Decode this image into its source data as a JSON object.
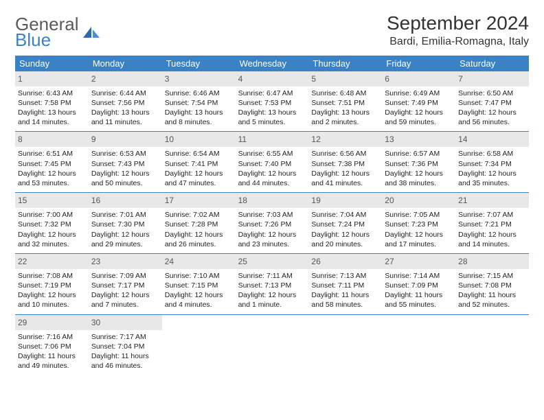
{
  "brand": {
    "word1": "General",
    "word2": "Blue"
  },
  "title": "September 2024",
  "location": "Bardi, Emilia-Romagna, Italy",
  "colors": {
    "accent": "#3b82c4",
    "daybar": "#e8e8e8",
    "text": "#222222",
    "muted": "#555555",
    "bg": "#ffffff"
  },
  "weekdays": [
    "Sunday",
    "Monday",
    "Tuesday",
    "Wednesday",
    "Thursday",
    "Friday",
    "Saturday"
  ],
  "weeks": [
    [
      {
        "n": "1",
        "sr": "Sunrise: 6:43 AM",
        "ss": "Sunset: 7:58 PM",
        "d1": "Daylight: 13 hours",
        "d2": "and 14 minutes."
      },
      {
        "n": "2",
        "sr": "Sunrise: 6:44 AM",
        "ss": "Sunset: 7:56 PM",
        "d1": "Daylight: 13 hours",
        "d2": "and 11 minutes."
      },
      {
        "n": "3",
        "sr": "Sunrise: 6:46 AM",
        "ss": "Sunset: 7:54 PM",
        "d1": "Daylight: 13 hours",
        "d2": "and 8 minutes."
      },
      {
        "n": "4",
        "sr": "Sunrise: 6:47 AM",
        "ss": "Sunset: 7:53 PM",
        "d1": "Daylight: 13 hours",
        "d2": "and 5 minutes."
      },
      {
        "n": "5",
        "sr": "Sunrise: 6:48 AM",
        "ss": "Sunset: 7:51 PM",
        "d1": "Daylight: 13 hours",
        "d2": "and 2 minutes."
      },
      {
        "n": "6",
        "sr": "Sunrise: 6:49 AM",
        "ss": "Sunset: 7:49 PM",
        "d1": "Daylight: 12 hours",
        "d2": "and 59 minutes."
      },
      {
        "n": "7",
        "sr": "Sunrise: 6:50 AM",
        "ss": "Sunset: 7:47 PM",
        "d1": "Daylight: 12 hours",
        "d2": "and 56 minutes."
      }
    ],
    [
      {
        "n": "8",
        "sr": "Sunrise: 6:51 AM",
        "ss": "Sunset: 7:45 PM",
        "d1": "Daylight: 12 hours",
        "d2": "and 53 minutes."
      },
      {
        "n": "9",
        "sr": "Sunrise: 6:53 AM",
        "ss": "Sunset: 7:43 PM",
        "d1": "Daylight: 12 hours",
        "d2": "and 50 minutes."
      },
      {
        "n": "10",
        "sr": "Sunrise: 6:54 AM",
        "ss": "Sunset: 7:41 PM",
        "d1": "Daylight: 12 hours",
        "d2": "and 47 minutes."
      },
      {
        "n": "11",
        "sr": "Sunrise: 6:55 AM",
        "ss": "Sunset: 7:40 PM",
        "d1": "Daylight: 12 hours",
        "d2": "and 44 minutes."
      },
      {
        "n": "12",
        "sr": "Sunrise: 6:56 AM",
        "ss": "Sunset: 7:38 PM",
        "d1": "Daylight: 12 hours",
        "d2": "and 41 minutes."
      },
      {
        "n": "13",
        "sr": "Sunrise: 6:57 AM",
        "ss": "Sunset: 7:36 PM",
        "d1": "Daylight: 12 hours",
        "d2": "and 38 minutes."
      },
      {
        "n": "14",
        "sr": "Sunrise: 6:58 AM",
        "ss": "Sunset: 7:34 PM",
        "d1": "Daylight: 12 hours",
        "d2": "and 35 minutes."
      }
    ],
    [
      {
        "n": "15",
        "sr": "Sunrise: 7:00 AM",
        "ss": "Sunset: 7:32 PM",
        "d1": "Daylight: 12 hours",
        "d2": "and 32 minutes."
      },
      {
        "n": "16",
        "sr": "Sunrise: 7:01 AM",
        "ss": "Sunset: 7:30 PM",
        "d1": "Daylight: 12 hours",
        "d2": "and 29 minutes."
      },
      {
        "n": "17",
        "sr": "Sunrise: 7:02 AM",
        "ss": "Sunset: 7:28 PM",
        "d1": "Daylight: 12 hours",
        "d2": "and 26 minutes."
      },
      {
        "n": "18",
        "sr": "Sunrise: 7:03 AM",
        "ss": "Sunset: 7:26 PM",
        "d1": "Daylight: 12 hours",
        "d2": "and 23 minutes."
      },
      {
        "n": "19",
        "sr": "Sunrise: 7:04 AM",
        "ss": "Sunset: 7:24 PM",
        "d1": "Daylight: 12 hours",
        "d2": "and 20 minutes."
      },
      {
        "n": "20",
        "sr": "Sunrise: 7:05 AM",
        "ss": "Sunset: 7:23 PM",
        "d1": "Daylight: 12 hours",
        "d2": "and 17 minutes."
      },
      {
        "n": "21",
        "sr": "Sunrise: 7:07 AM",
        "ss": "Sunset: 7:21 PM",
        "d1": "Daylight: 12 hours",
        "d2": "and 14 minutes."
      }
    ],
    [
      {
        "n": "22",
        "sr": "Sunrise: 7:08 AM",
        "ss": "Sunset: 7:19 PM",
        "d1": "Daylight: 12 hours",
        "d2": "and 10 minutes."
      },
      {
        "n": "23",
        "sr": "Sunrise: 7:09 AM",
        "ss": "Sunset: 7:17 PM",
        "d1": "Daylight: 12 hours",
        "d2": "and 7 minutes."
      },
      {
        "n": "24",
        "sr": "Sunrise: 7:10 AM",
        "ss": "Sunset: 7:15 PM",
        "d1": "Daylight: 12 hours",
        "d2": "and 4 minutes."
      },
      {
        "n": "25",
        "sr": "Sunrise: 7:11 AM",
        "ss": "Sunset: 7:13 PM",
        "d1": "Daylight: 12 hours",
        "d2": "and 1 minute."
      },
      {
        "n": "26",
        "sr": "Sunrise: 7:13 AM",
        "ss": "Sunset: 7:11 PM",
        "d1": "Daylight: 11 hours",
        "d2": "and 58 minutes."
      },
      {
        "n": "27",
        "sr": "Sunrise: 7:14 AM",
        "ss": "Sunset: 7:09 PM",
        "d1": "Daylight: 11 hours",
        "d2": "and 55 minutes."
      },
      {
        "n": "28",
        "sr": "Sunrise: 7:15 AM",
        "ss": "Sunset: 7:08 PM",
        "d1": "Daylight: 11 hours",
        "d2": "and 52 minutes."
      }
    ],
    [
      {
        "n": "29",
        "sr": "Sunrise: 7:16 AM",
        "ss": "Sunset: 7:06 PM",
        "d1": "Daylight: 11 hours",
        "d2": "and 49 minutes."
      },
      {
        "n": "30",
        "sr": "Sunrise: 7:17 AM",
        "ss": "Sunset: 7:04 PM",
        "d1": "Daylight: 11 hours",
        "d2": "and 46 minutes."
      },
      null,
      null,
      null,
      null,
      null
    ]
  ]
}
